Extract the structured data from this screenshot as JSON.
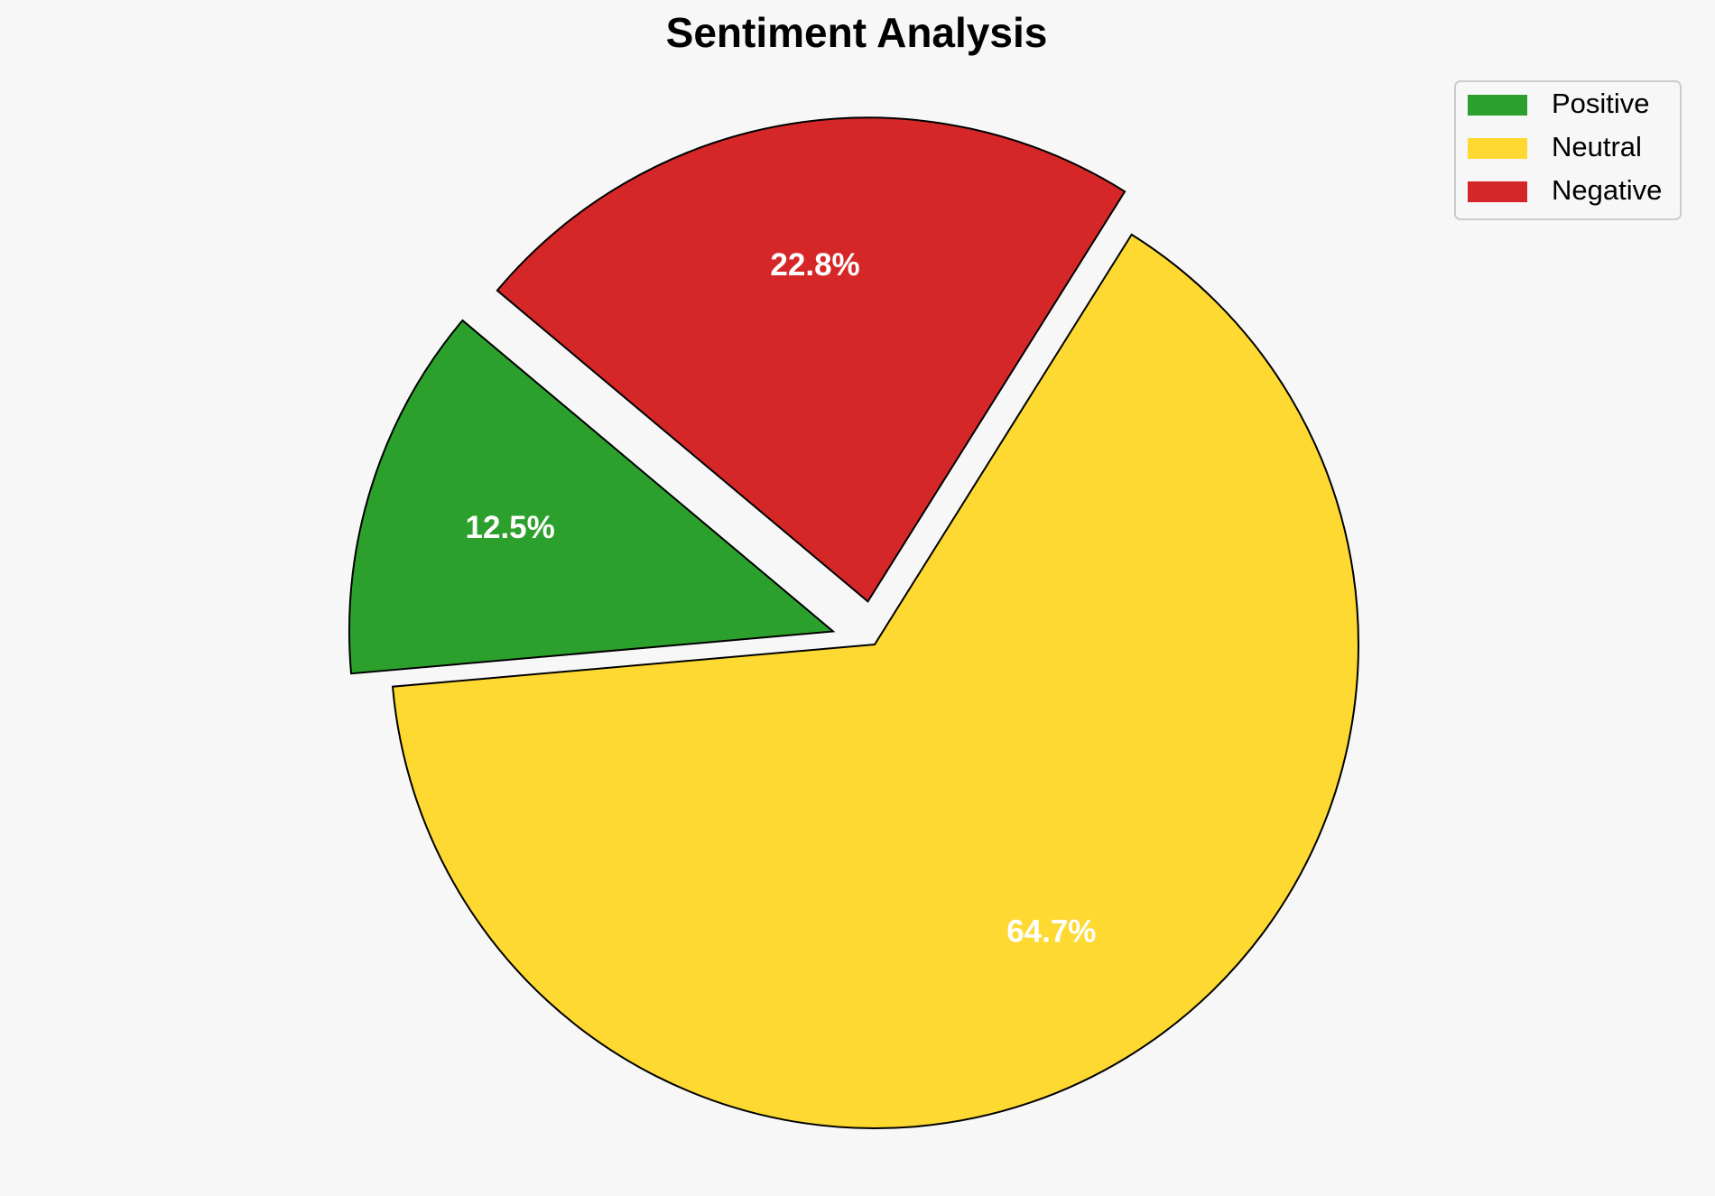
{
  "chart_data": {
    "type": "pie",
    "title": "Sentiment Analysis",
    "categories": [
      "Positive",
      "Neutral",
      "Negative"
    ],
    "values": [
      12.5,
      64.7,
      22.8
    ],
    "value_labels": [
      "12.5%",
      "64.7%",
      "22.8%"
    ],
    "colors": [
      "#2ca02c",
      "#fdd931",
      "#d62728"
    ],
    "legend": "upper right"
  }
}
